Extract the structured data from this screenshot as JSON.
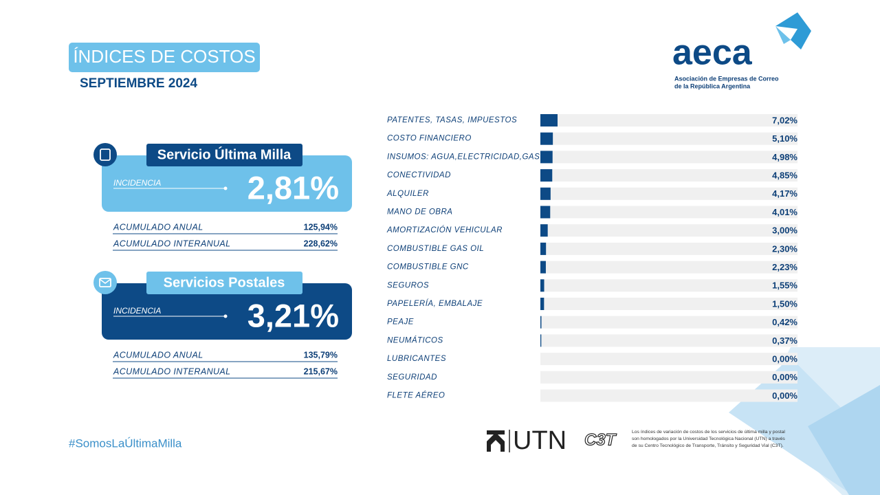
{
  "header": {
    "title": "ÍNDICES DE COSTOS",
    "subtitle": "SEPTIEMBRE 2024"
  },
  "logo": {
    "name": "aeca",
    "lines": [
      "Asociación de Empresas de Correo",
      "de la República Argentina"
    ]
  },
  "cards": [
    {
      "title": "Servicio Última Milla",
      "label": "INCIDENCIA",
      "value": "2,81%",
      "rows": [
        [
          "ACUMULADO ANUAL",
          "125,94%"
        ],
        [
          "ACUMULADO INTERANUAL",
          "228,62%"
        ]
      ]
    },
    {
      "title": "Servicios Postales",
      "label": "INCIDENCIA",
      "value": "3,21%",
      "rows": [
        [
          "ACUMULADO ANUAL",
          "135,79%"
        ],
        [
          "ACUMULADO INTERANUAL",
          "215,67%"
        ]
      ]
    }
  ],
  "chart_data": {
    "type": "bar",
    "orientation": "horizontal",
    "color": "#0d4a86",
    "categories": [
      "PATENTES, TASAS, IMPUESTOS",
      "COSTO FINANCIERO",
      "INSUMOS: AGUA,ELECTRICIDAD,GAS",
      "CONECTIVIDAD",
      "ALQUILER",
      "MANO DE OBRA",
      "AMORTIZACIÓN VEHICULAR",
      "COMBUSTIBLE GAS OIL",
      "COMBUSTIBLE GNC",
      "SEGUROS",
      "PAPELERÍA, EMBALAJE",
      "PEAJE",
      "NEUMÁTICOS",
      "LUBRICANTES",
      "SEGURIDAD",
      "FLETE AÉREO"
    ],
    "values": [
      7.02,
      5.1,
      4.98,
      4.85,
      4.17,
      4.01,
      3.0,
      2.3,
      2.23,
      1.55,
      1.5,
      0.42,
      0.37,
      0.0,
      0.0,
      0.0
    ],
    "value_labels": [
      "7,02%",
      "5,10%",
      "4,98%",
      "4,85%",
      "4,17%",
      "4,01%",
      "3,00%",
      "2,30%",
      "2,23%",
      "1,55%",
      "1,50%",
      "0,42%",
      "0,37%",
      "0,00%",
      "0,00%",
      "0,00%"
    ]
  },
  "footer": {
    "hashtag": "#SomosLaÚltimaMilla",
    "utn": "UTN",
    "c3t": "C3T",
    "note": [
      "Los índices de variación de costos de los servicios de última milla y postal",
      "son homologados por la Universidad Tecnológica Nacional (UTN) a través",
      "de su Centro Tecnológico de Transporte, Tránsito y Seguridad Vial (C3T)."
    ]
  }
}
